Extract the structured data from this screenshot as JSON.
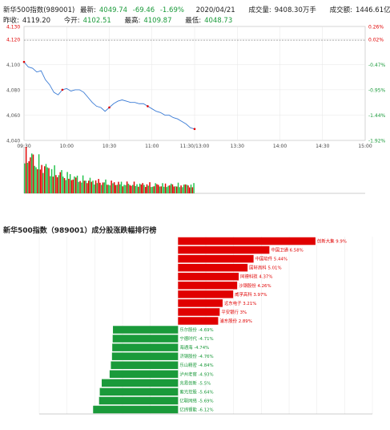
{
  "header": {
    "row1": {
      "name": "新华500指数(989001)",
      "latest_label": "最新:",
      "latest": "4049.74",
      "change": "-69.46",
      "change_pct": "-1.69%",
      "date": "2020/04/21",
      "volume_label": "成交量:",
      "volume": "9408.30万手",
      "amount_label": "成交额:",
      "amount": "1446.61亿"
    },
    "row2": {
      "prev_close_label": "昨收:",
      "prev_close": "4119.20",
      "open_label": "今开:",
      "open": "4102.51",
      "high_label": "最高:",
      "high": "4109.87",
      "low_label": "最低:",
      "low": "4048.73"
    }
  },
  "colors": {
    "up": "#e00000",
    "down": "#1a9a3a",
    "price_line": "#3a7bd5",
    "ref_line": "#777777"
  },
  "chart_data": [
    {
      "type": "line",
      "ylim": [
        4040,
        4130
      ],
      "y_ticks_left": [
        "4,130",
        "4,120",
        "4,100",
        "4,080",
        "4,060",
        "4,040"
      ],
      "y_tick_values": [
        4130,
        4120,
        4100,
        4080,
        4060,
        4040
      ],
      "y_ticks_right": [
        "0.26%",
        "0.02%",
        "-0.47%",
        "-0.95%",
        "-1.44%",
        "-1.92%"
      ],
      "x_ticks": [
        "09:30",
        "10:00",
        "10:30",
        "11:00",
        "11:30/13:00",
        "13:30",
        "14:00",
        "14:30",
        "15:00"
      ],
      "reference": 4119.2,
      "x": [
        0,
        3,
        6,
        9,
        12,
        15,
        18,
        21,
        24,
        27,
        30,
        33,
        36,
        39,
        42,
        45,
        48,
        51,
        54,
        57,
        60,
        63,
        66,
        69,
        72,
        75,
        78,
        81,
        84,
        87,
        90,
        93,
        96,
        99,
        102,
        105,
        108,
        111,
        114,
        117,
        120
      ],
      "values": [
        4102,
        4098,
        4097,
        4094,
        4095,
        4088,
        4084,
        4078,
        4076,
        4080,
        4081,
        4079,
        4080,
        4080,
        4078,
        4074,
        4070,
        4067,
        4066,
        4063,
        4066,
        4069,
        4071,
        4072,
        4071,
        4070,
        4070,
        4069,
        4069,
        4067,
        4065,
        4063,
        4062,
        4060,
        4060,
        4058,
        4057,
        4055,
        4053,
        4050,
        4049
      ],
      "markers": [
        {
          "x": 0,
          "color": "up"
        },
        {
          "x": 27,
          "color": "up"
        },
        {
          "x": 60,
          "color": "up"
        },
        {
          "x": 87,
          "color": "up"
        },
        {
          "x": 120,
          "color": "up"
        }
      ]
    },
    {
      "type": "bar",
      "title": "新华500指数（989001）成分股涨跌幅排行榜",
      "categories": [
        "创新大集",
        "中国卫通",
        "中国软件",
        "国轩高科",
        "同德科技",
        "沙钢股份",
        "威孚高科",
        "远东电子",
        "平安银行",
        "浦东股份",
        "乐尔股份",
        "宁德时代",
        "海通海",
        "济钢股份",
        "乐山精密",
        "泸州老窖",
        "兆易创新",
        "紫光控股",
        "亿联网络",
        "亿纬锂能"
      ],
      "values": [
        9.9,
        6.58,
        5.44,
        5.01,
        4.37,
        4.26,
        3.97,
        3.21,
        3.0,
        2.89,
        -4.69,
        -4.71,
        -4.74,
        -4.76,
        -4.84,
        -4.93,
        -5.5,
        -5.64,
        -5.69,
        -6.12
      ],
      "labels": [
        "创新大集 9.9%",
        "中国卫通 6.58%",
        "中国软件 5.44%",
        "国轩高科 5.01%",
        "同德科技 4.37%",
        "沙钢股份 4.26%",
        "威孚高科 3.97%",
        "远东电子 3.21%",
        "平安银行 3%",
        "浦东股份 2.89%",
        "乐尔股份 -4.69%",
        "宁德时代 -4.71%",
        "海通海 -4.74%",
        "济钢股份 -4.76%",
        "乐山精密 -4.84%",
        "泸州老窖 -4.93%",
        "兆易创新 -5.5%",
        "紫光控股 -5.64%",
        "亿联网络 -5.69%",
        "亿纬锂能 -6.12%"
      ],
      "xlim": [
        -10,
        14
      ],
      "grid": true
    }
  ]
}
